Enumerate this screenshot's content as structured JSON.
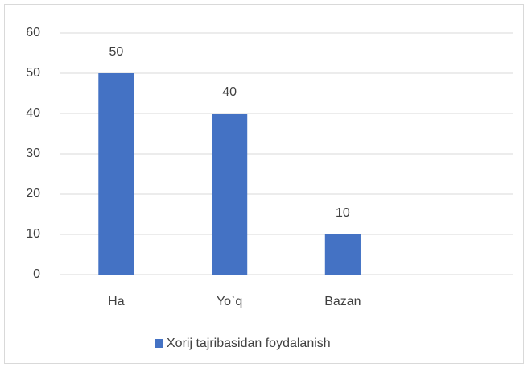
{
  "chart_data": {
    "type": "bar",
    "categories": [
      "Ha",
      "Yo`q",
      "Bazan",
      null
    ],
    "series": [
      {
        "name": "Xorij tajribasidan foydalanish",
        "color": "#4472c4",
        "values": [
          50,
          40,
          10,
          null
        ]
      }
    ],
    "ylim": [
      0,
      60
    ],
    "yticks": [
      0,
      10,
      20,
      30,
      40,
      50,
      60
    ],
    "grid": true,
    "legend": "bottom"
  }
}
